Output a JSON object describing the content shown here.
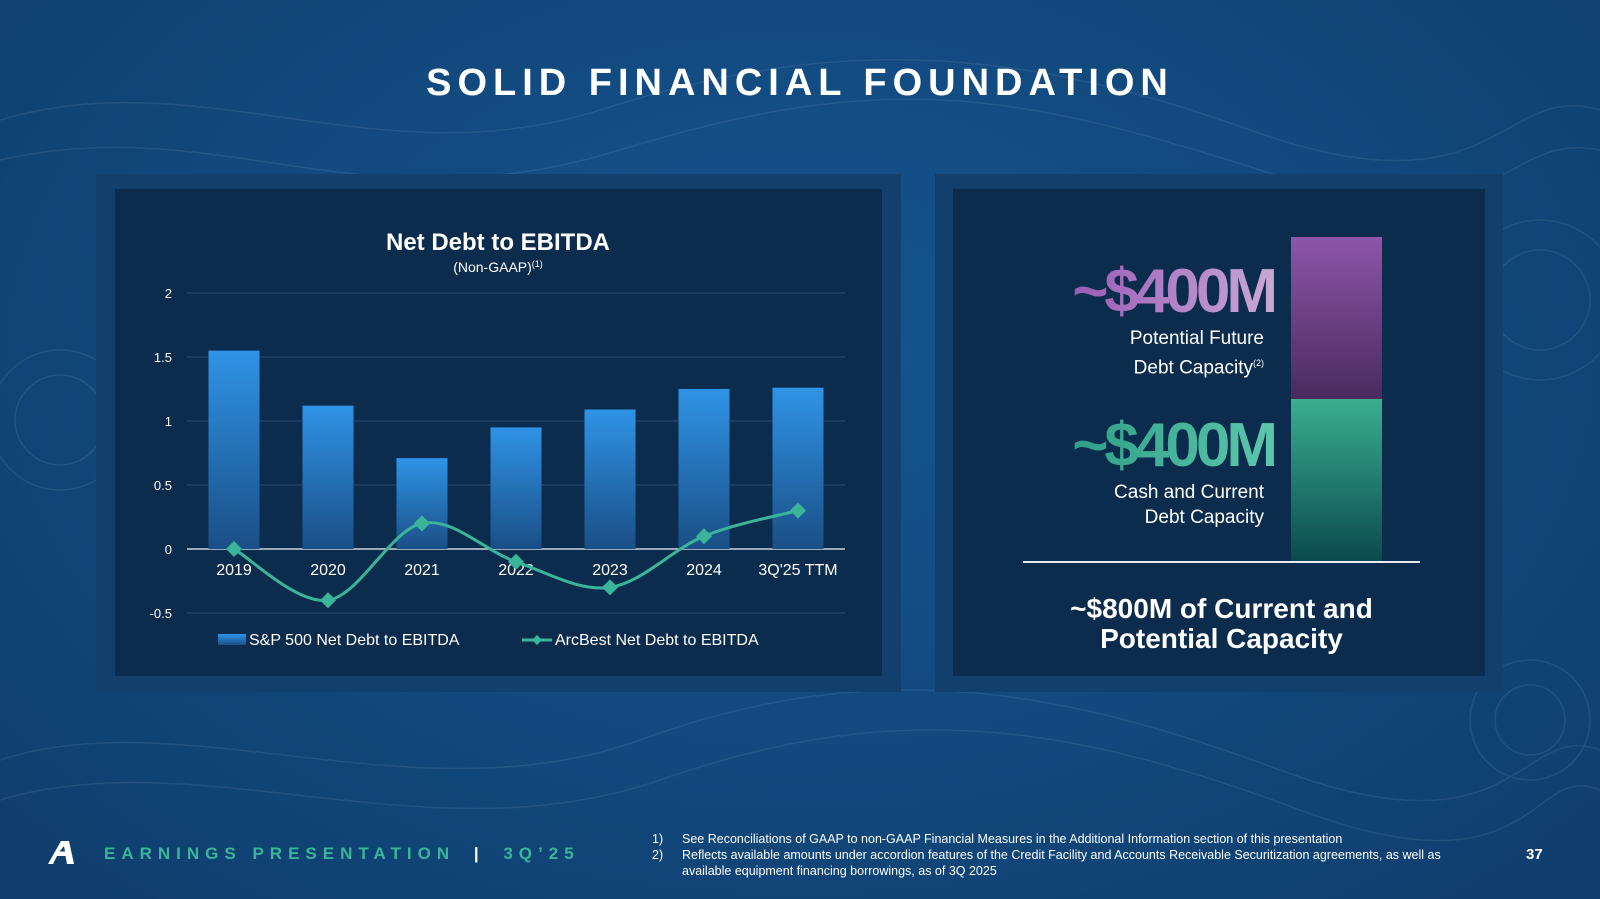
{
  "slide": {
    "title": "SOLID FINANCIAL FOUNDATION",
    "page_number": "37"
  },
  "footer": {
    "label": "EARNINGS PRESENTATION",
    "separator": "|",
    "period": "3Q’25",
    "logo_icon": "arcbest-a-logo"
  },
  "footnotes": [
    {
      "num": "1)",
      "text": "See Reconciliations of GAAP to non-GAAP Financial Measures in the Additional Information section of this presentation"
    },
    {
      "num": "2)",
      "text": "Reflects available amounts under accordion features of the Credit Facility and Accounts Receivable Securitization agreements, as well as available equipment financing borrowings, as of 3Q 2025"
    }
  ],
  "capacity": {
    "future": {
      "value": "~$400M",
      "label_line1": "Potential Future",
      "label_line2": "Debt Capacity",
      "footnote": "(2)"
    },
    "current": {
      "value": "~$400M",
      "label_line1": "Cash and Current",
      "label_line2": "Debt Capacity"
    },
    "total_line1": "~$800M of Current and",
    "total_line2": "Potential Capacity",
    "colors": {
      "future_top": "#8e55a9",
      "future_bottom": "#4a2a5e",
      "current_top": "#3aae8f",
      "current_bottom": "#0b4a4e"
    }
  },
  "chart_data": {
    "type": "bar",
    "title": "Net Debt to EBITDA",
    "subtitle": "(Non-GAAP)",
    "subtitle_footnote": "(1)",
    "categories": [
      "2019",
      "2020",
      "2021",
      "2022",
      "2023",
      "2024",
      "3Q'25 TTM"
    ],
    "series": [
      {
        "name": "S&P 500 Net Debt to EBITDA",
        "type": "bar",
        "color": "#2e8fe0",
        "values": [
          1.55,
          1.12,
          0.71,
          0.95,
          1.09,
          1.25,
          1.26
        ]
      },
      {
        "name": "ArcBest Net Debt to EBITDA",
        "type": "line",
        "color": "#3bb59a",
        "values": [
          0.0,
          -0.4,
          0.2,
          -0.1,
          -0.3,
          0.1,
          0.3
        ]
      }
    ],
    "y_ticks": [
      "2",
      "1.5",
      "1",
      "0.5",
      "0",
      "-0.5"
    ],
    "ylim": [
      -0.5,
      2
    ],
    "grid": true,
    "legend": "bottom"
  }
}
